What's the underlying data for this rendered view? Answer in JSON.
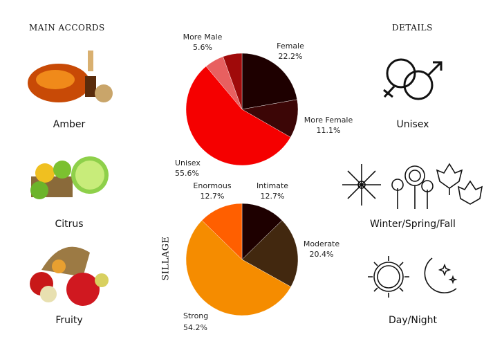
{
  "accords": {
    "title": "MAIN ACCORDS",
    "items": [
      {
        "label": "Amber"
      },
      {
        "label": "Citrus"
      },
      {
        "label": "Fruity"
      }
    ]
  },
  "details": {
    "title": "DETAILS",
    "gender": "Unisex",
    "season": "Winter/Spring/Fall",
    "time": "Day/Night"
  },
  "chart_data": [
    {
      "type": "pie",
      "title": "",
      "categories": [
        "Female",
        "More Female",
        "Unisex",
        "More Male",
        ""
      ],
      "values": [
        22.2,
        11.1,
        55.6,
        5.6,
        5.5
      ],
      "labels": [
        "22.2%",
        "11.1%",
        "55.6%",
        "5.6%",
        ""
      ],
      "colors": [
        "#1e0000",
        "#3c0606",
        "#f50000",
        "#e86060",
        "#a00a0a"
      ],
      "start": "top",
      "direction": "clockwise"
    },
    {
      "type": "pie",
      "title": "SILLAGE",
      "categories": [
        "Intimate",
        "Moderate",
        "Strong",
        "Enormous"
      ],
      "values": [
        12.7,
        20.4,
        54.2,
        12.7
      ],
      "labels": [
        "12.7%",
        "20.4%",
        "54.2%",
        "12.7%"
      ],
      "colors": [
        "#1e0000",
        "#42280f",
        "#f58c00",
        "#ff5f00"
      ],
      "start": "top",
      "direction": "clockwise"
    }
  ]
}
